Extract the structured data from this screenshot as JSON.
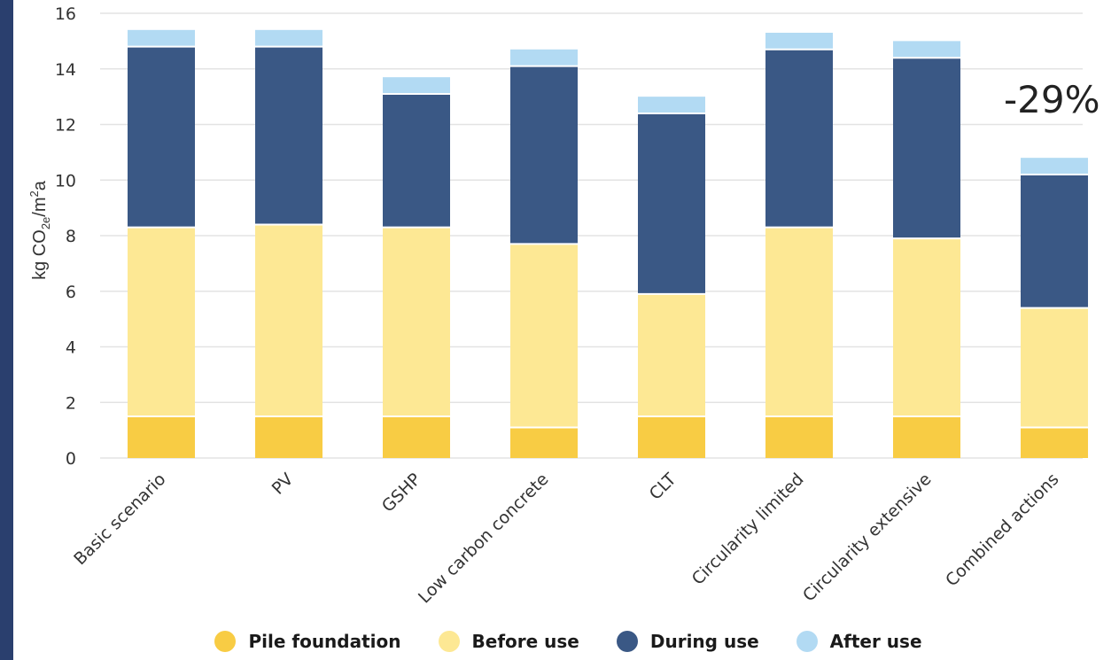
{
  "chart_data": {
    "type": "bar",
    "stacked": true,
    "categories": [
      "Basic scenario",
      "PV",
      "GSHP",
      "Low carbon concrete",
      "CLT",
      "Circularity limited",
      "Circularity extensive",
      "Combined actions"
    ],
    "series": [
      {
        "name": "Pile foundation",
        "color": "#f8cc44",
        "values": [
          1.5,
          1.5,
          1.5,
          1.1,
          1.5,
          1.5,
          1.5,
          1.1
        ]
      },
      {
        "name": "Before use",
        "color": "#fde894",
        "values": [
          6.8,
          6.9,
          6.8,
          6.6,
          4.4,
          6.8,
          6.4,
          4.3
        ]
      },
      {
        "name": "During use",
        "color": "#3a5885",
        "values": [
          6.5,
          6.4,
          4.8,
          6.4,
          6.5,
          6.4,
          6.5,
          4.8
        ]
      },
      {
        "name": "After use",
        "color": "#b2daf3",
        "values": [
          0.6,
          0.6,
          0.6,
          0.6,
          0.6,
          0.6,
          0.6,
          0.6
        ]
      }
    ],
    "ylim": [
      0,
      16
    ],
    "yticks": [
      0,
      2,
      4,
      6,
      8,
      10,
      12,
      14,
      16
    ],
    "ylabel": "kg CO2e/m2a",
    "xlabel": "",
    "title": "",
    "grid": true,
    "legend_position": "bottom",
    "annotation": "-29%"
  }
}
